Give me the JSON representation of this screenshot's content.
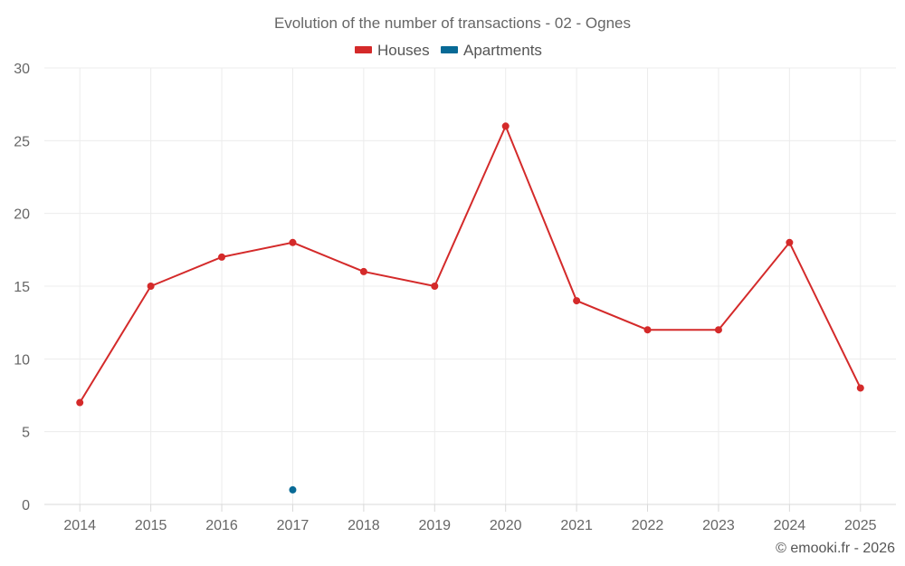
{
  "chart_data": {
    "type": "line",
    "title": "Evolution of the number of transactions - 02 - Ognes",
    "categories": [
      "2014",
      "2015",
      "2016",
      "2017",
      "2018",
      "2019",
      "2020",
      "2021",
      "2022",
      "2023",
      "2024",
      "2025"
    ],
    "series": [
      {
        "name": "Houses",
        "color": "#d42a2a",
        "values": [
          7,
          15,
          17,
          18,
          16,
          15,
          26,
          14,
          12,
          12,
          18,
          8
        ]
      },
      {
        "name": "Apartments",
        "color": "#086a96",
        "values": [
          null,
          null,
          null,
          1,
          null,
          null,
          null,
          null,
          null,
          null,
          null,
          null
        ]
      }
    ],
    "ylim": [
      0,
      30
    ],
    "yticks": [
      0,
      5,
      10,
      15,
      20,
      25,
      30
    ],
    "xlabel": "",
    "ylabel": "",
    "grid": true,
    "legend_position": "top-center",
    "credit": "© emooki.fr - 2026"
  }
}
